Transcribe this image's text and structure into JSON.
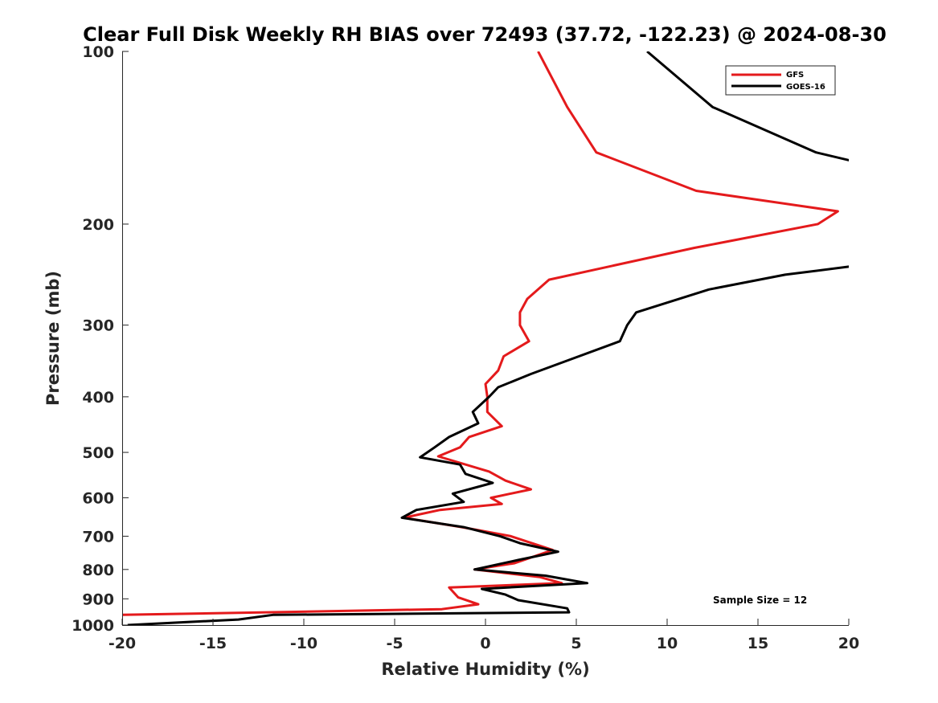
{
  "chart_data": {
    "type": "line",
    "title": "Clear Full Disk Weekly RH BIAS over 72493 (37.72, -122.23) @ 2024-08-30",
    "xlabel": "Relative Humidity (%)",
    "ylabel": "Pressure (mb)",
    "xlim": [
      -20,
      20
    ],
    "ylim": [
      100,
      1000
    ],
    "y_scale": "log",
    "y_reversed": true,
    "grid": false,
    "legend_position": "top-right",
    "x_ticks": [
      -20,
      -15,
      -10,
      -5,
      0,
      5,
      10,
      15,
      20
    ],
    "x_tick_labels": [
      "-20",
      "-15",
      "-10",
      "-5",
      "0",
      "5",
      "10",
      "15",
      "20"
    ],
    "y_ticks": [
      100,
      200,
      300,
      400,
      500,
      600,
      700,
      800,
      900,
      1000
    ],
    "y_tick_labels": [
      "100",
      "200",
      "300",
      "400",
      "500",
      "600",
      "700",
      "800",
      "900",
      "1000"
    ],
    "annotation": "Sample Size = 12",
    "series": [
      {
        "name": "GFS",
        "color": "#e41a1c",
        "points": [
          [
            2.9,
            100
          ],
          [
            4.5,
            125
          ],
          [
            6.1,
            150
          ],
          [
            11.6,
            175
          ],
          [
            19.4,
            190
          ],
          [
            18.3,
            200
          ],
          [
            11.5,
            220
          ],
          [
            3.5,
            250
          ],
          [
            2.3,
            270
          ],
          [
            1.9,
            285
          ],
          [
            1.9,
            300
          ],
          [
            2.4,
            320
          ],
          [
            1.0,
            340
          ],
          [
            0.7,
            360
          ],
          [
            0.0,
            380
          ],
          [
            0.1,
            400
          ],
          [
            0.1,
            425
          ],
          [
            0.9,
            450
          ],
          [
            -0.9,
            470
          ],
          [
            -1.4,
            490
          ],
          [
            -2.6,
            508
          ],
          [
            0.2,
            540
          ],
          [
            1.1,
            560
          ],
          [
            2.5,
            580
          ],
          [
            0.3,
            600
          ],
          [
            0.9,
            615
          ],
          [
            -2.5,
            630
          ],
          [
            -4.5,
            650
          ],
          [
            -1.3,
            675
          ],
          [
            1.4,
            700
          ],
          [
            3.7,
            740
          ],
          [
            1.6,
            780
          ],
          [
            -0.6,
            800
          ],
          [
            3.0,
            825
          ],
          [
            4.2,
            845
          ],
          [
            -2.0,
            860
          ],
          [
            -1.5,
            895
          ],
          [
            -0.4,
            920
          ],
          [
            -2.4,
            938
          ],
          [
            -20,
            960
          ]
        ]
      },
      {
        "name": "GOES-16",
        "color": "#000000",
        "points": [
          [
            8.9,
            100
          ],
          [
            12.5,
            125
          ],
          [
            18.2,
            150
          ],
          [
            20.1,
            155
          ],
          [
            20.1,
            237
          ],
          [
            16.5,
            245
          ],
          [
            12.3,
            260
          ],
          [
            8.3,
            285
          ],
          [
            7.8,
            300
          ],
          [
            7.4,
            320
          ],
          [
            4.6,
            345
          ],
          [
            2.5,
            365
          ],
          [
            0.7,
            385
          ],
          [
            0.2,
            400
          ],
          [
            -0.7,
            425
          ],
          [
            -0.4,
            445
          ],
          [
            -2.0,
            470
          ],
          [
            -2.8,
            490
          ],
          [
            -3.6,
            510
          ],
          [
            -1.4,
            525
          ],
          [
            -1.1,
            545
          ],
          [
            0.4,
            565
          ],
          [
            -1.8,
            590
          ],
          [
            -1.2,
            610
          ],
          [
            -3.8,
            630
          ],
          [
            -4.6,
            650
          ],
          [
            -1.2,
            675
          ],
          [
            0.8,
            700
          ],
          [
            1.9,
            720
          ],
          [
            4.0,
            745
          ],
          [
            1.8,
            770
          ],
          [
            -0.6,
            800
          ],
          [
            3.3,
            820
          ],
          [
            5.6,
            845
          ],
          [
            -0.2,
            865
          ],
          [
            1.1,
            885
          ],
          [
            1.8,
            905
          ],
          [
            4.5,
            935
          ],
          [
            4.6,
            950
          ],
          [
            -11.7,
            960
          ],
          [
            -13.6,
            978
          ],
          [
            -19.7,
            1000
          ]
        ]
      }
    ]
  }
}
